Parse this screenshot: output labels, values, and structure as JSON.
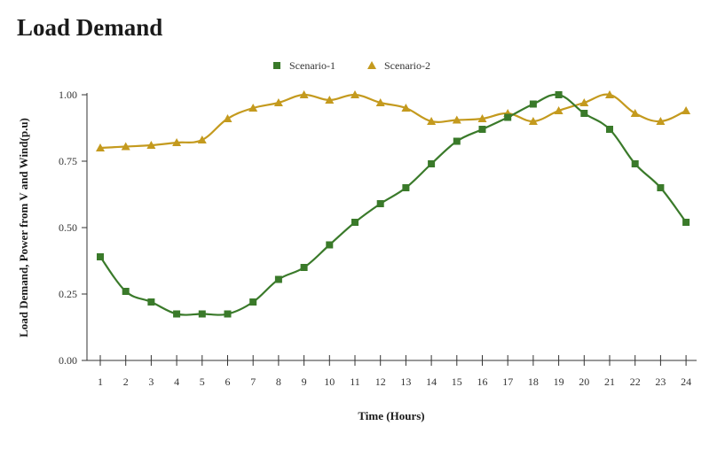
{
  "page": {
    "title": "Load Demand"
  },
  "chart_data": {
    "type": "line",
    "title": "",
    "xlabel": "Time (Hours)",
    "ylabel": "Load Demand, Power from V and Wind(p.u)",
    "x": [
      1,
      2,
      3,
      4,
      5,
      6,
      7,
      8,
      9,
      10,
      11,
      12,
      13,
      14,
      15,
      16,
      17,
      18,
      19,
      20,
      21,
      22,
      23,
      24
    ],
    "x_tick_labels": [
      "1",
      "2",
      "3",
      "4",
      "5",
      "6",
      "7",
      "8",
      "9",
      "10",
      "11",
      "12",
      "13",
      "14",
      "15",
      "16",
      "17",
      "18",
      "19",
      "20",
      "21",
      "22",
      "23",
      "24"
    ],
    "ylim": [
      0,
      1
    ],
    "y_ticks": [
      0,
      0.25,
      0.5,
      0.75,
      1
    ],
    "y_tick_labels": [
      "0.00",
      "0.25",
      "0.50",
      "0.75",
      "1.00"
    ],
    "grid": false,
    "legend_position": "top-center",
    "series": [
      {
        "name": "Scenario-1",
        "color": "#3a7a2a",
        "marker": "square",
        "values": [
          0.39,
          0.26,
          0.22,
          0.175,
          0.175,
          0.175,
          0.22,
          0.305,
          0.35,
          0.435,
          0.52,
          0.59,
          0.65,
          0.74,
          0.825,
          0.87,
          0.915,
          0.965,
          1.0,
          0.93,
          0.87,
          0.74,
          0.65,
          0.52
        ]
      },
      {
        "name": "Scenario-2",
        "color": "#c49a1e",
        "marker": "triangle",
        "values": [
          0.8,
          0.805,
          0.81,
          0.82,
          0.83,
          0.91,
          0.95,
          0.97,
          1.0,
          0.98,
          1.0,
          0.97,
          0.95,
          0.9,
          0.905,
          0.91,
          0.93,
          0.9,
          0.94,
          0.97,
          1.0,
          0.93,
          0.9,
          0.94
        ]
      }
    ]
  }
}
